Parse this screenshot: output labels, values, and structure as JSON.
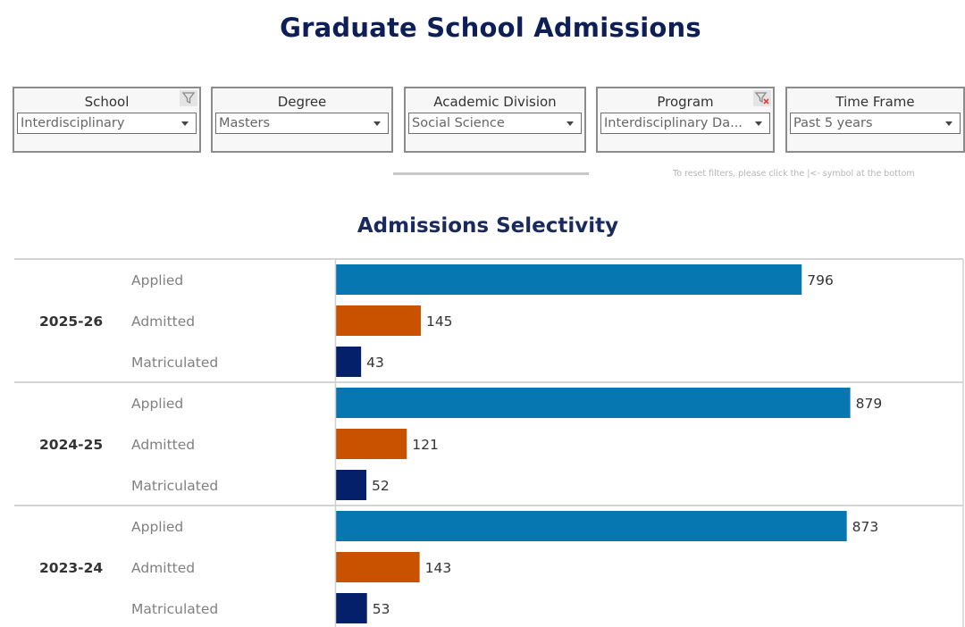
{
  "header": {
    "title": "Graduate School Admissions"
  },
  "filters": [
    {
      "label": "School",
      "value": "Interdisciplinary",
      "icon": "filter-icon"
    },
    {
      "label": "Degree",
      "value": "Masters"
    },
    {
      "label": "Academic Division",
      "value": "Social Science"
    },
    {
      "label": "Program",
      "value": "Interdisciplinary Da...",
      "icon": "clear-filter-icon"
    },
    {
      "label": "Time Frame",
      "value": "Past 5 years"
    }
  ],
  "reset_note": "To reset filters, please click the |<- symbol at the bottom",
  "colors": {
    "applied": "#0677b1",
    "admitted": "#c85200",
    "matriculated": "#04206b",
    "title": "#0d1f56"
  },
  "chart_data": {
    "type": "bar",
    "orientation": "horizontal",
    "title": "Admissions Selectivity",
    "categories": [
      "Applied",
      "Admitted",
      "Matriculated"
    ],
    "groups": [
      {
        "year": "2025-26",
        "values": [
          796,
          145,
          43
        ]
      },
      {
        "year": "2024-25",
        "values": [
          879,
          121,
          52
        ]
      },
      {
        "year": "2023-24",
        "values": [
          873,
          143,
          53
        ]
      }
    ],
    "xlim": [
      0,
      1072
    ],
    "grid": false,
    "data_labels": true
  }
}
